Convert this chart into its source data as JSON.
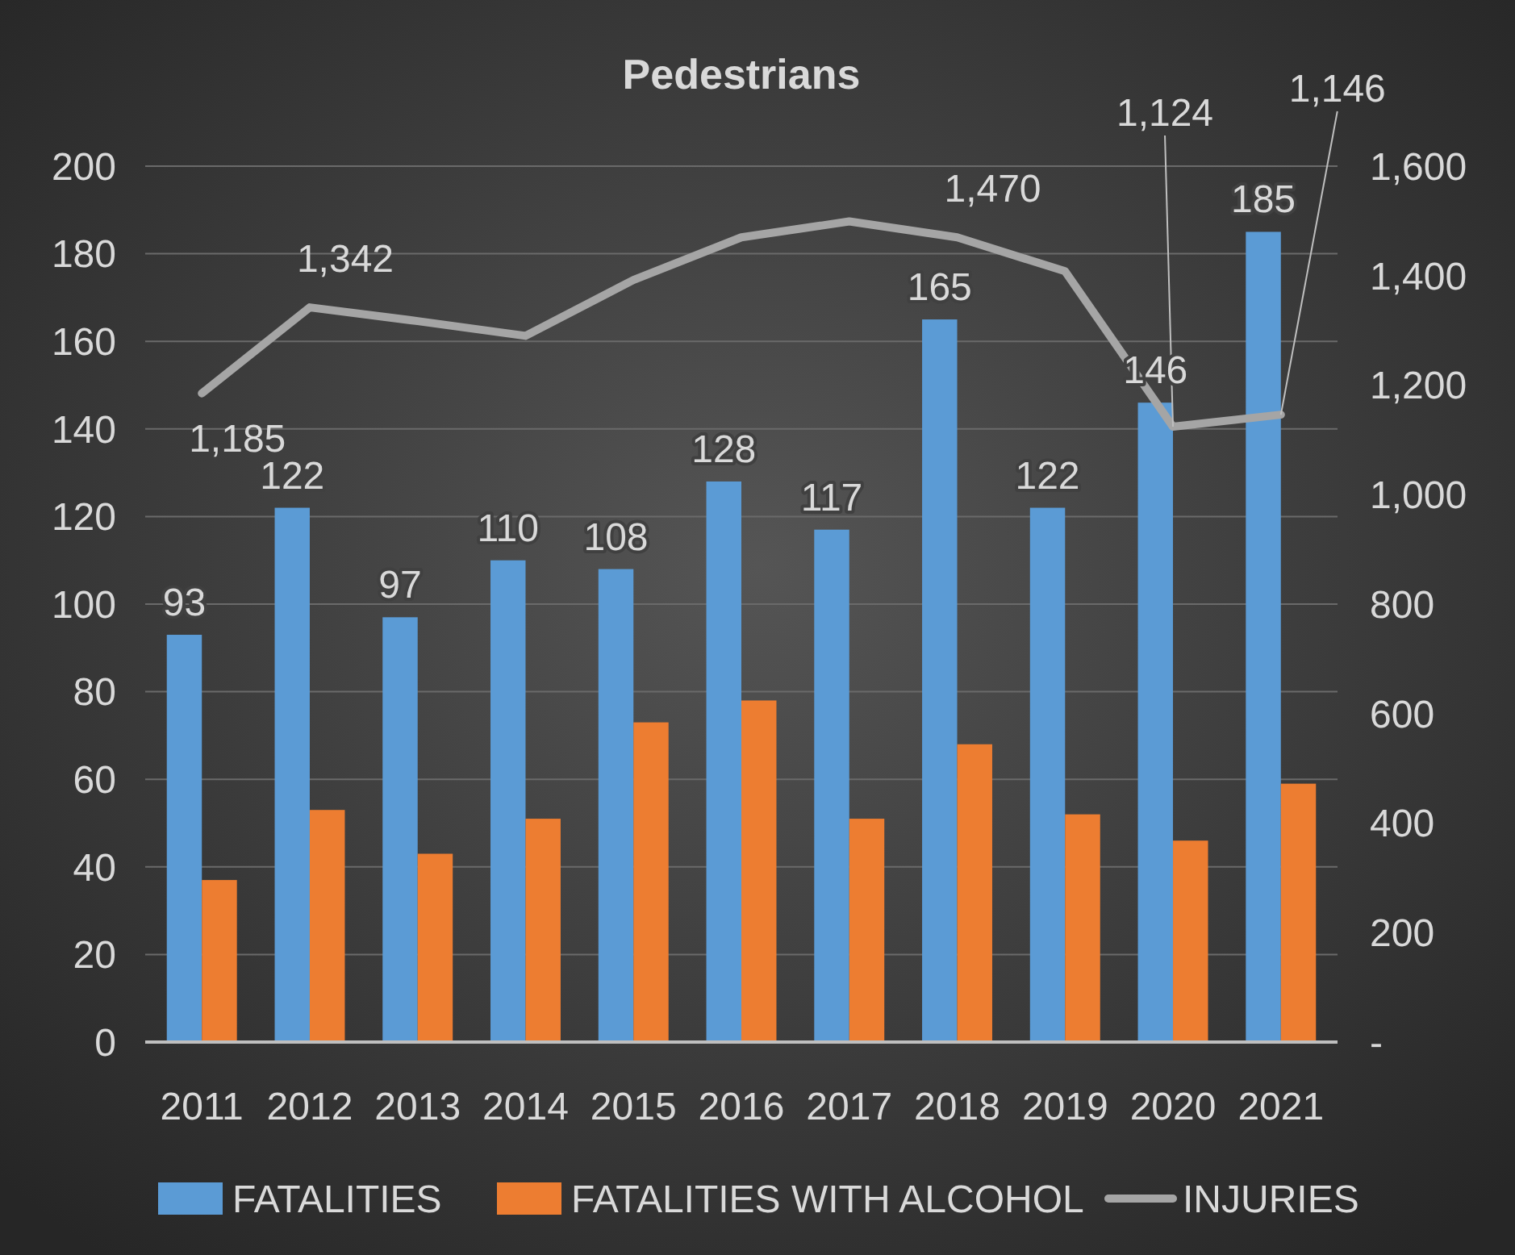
{
  "chart_data": {
    "type": "bar",
    "title": "Pedestrians",
    "categories": [
      "2011",
      "2012",
      "2013",
      "2014",
      "2015",
      "2016",
      "2017",
      "2018",
      "2019",
      "2020",
      "2021"
    ],
    "series": [
      {
        "name": "FATALITIES",
        "color": "#5b9bd5",
        "values": [
          93,
          122,
          97,
          110,
          108,
          128,
          117,
          165,
          122,
          146,
          185
        ],
        "value_labels": [
          "93",
          "122",
          "97",
          "110",
          "108",
          "128",
          "117",
          "165",
          "122",
          "146",
          "185"
        ]
      },
      {
        "name": "FATALITIES WITH ALCOHOL",
        "color": "#ed7d31",
        "values": [
          37,
          53,
          43,
          51,
          73,
          78,
          51,
          68,
          52,
          46,
          59
        ]
      },
      {
        "name": "INJURIES",
        "type": "line",
        "axis": "y2",
        "color": "#a5a5a5",
        "values": [
          1185,
          1342,
          1317,
          1290,
          1392,
          1470,
          1499,
          1470,
          1408,
          1124,
          1146
        ],
        "value_labels": [
          "1,185",
          "1,342",
          null,
          null,
          null,
          null,
          null,
          "1,470",
          null,
          "1,124",
          "1,146"
        ]
      }
    ],
    "ylim": [
      0,
      200
    ],
    "yticks": [
      0,
      20,
      40,
      60,
      80,
      100,
      120,
      140,
      160,
      180,
      200
    ],
    "y2lim": [
      0,
      1600
    ],
    "y2ticks": [
      {
        "value": 0,
        "label": "-"
      },
      200,
      400,
      600,
      800,
      {
        "value": 1000,
        "label": "1,000"
      },
      {
        "value": 1200,
        "label": "1,200"
      },
      {
        "value": 1400,
        "label": "1,400"
      },
      {
        "value": 1600,
        "label": "1,600"
      }
    ],
    "grid": "y",
    "legend": "bottom",
    "marker": "none",
    "line_style": "solid"
  }
}
